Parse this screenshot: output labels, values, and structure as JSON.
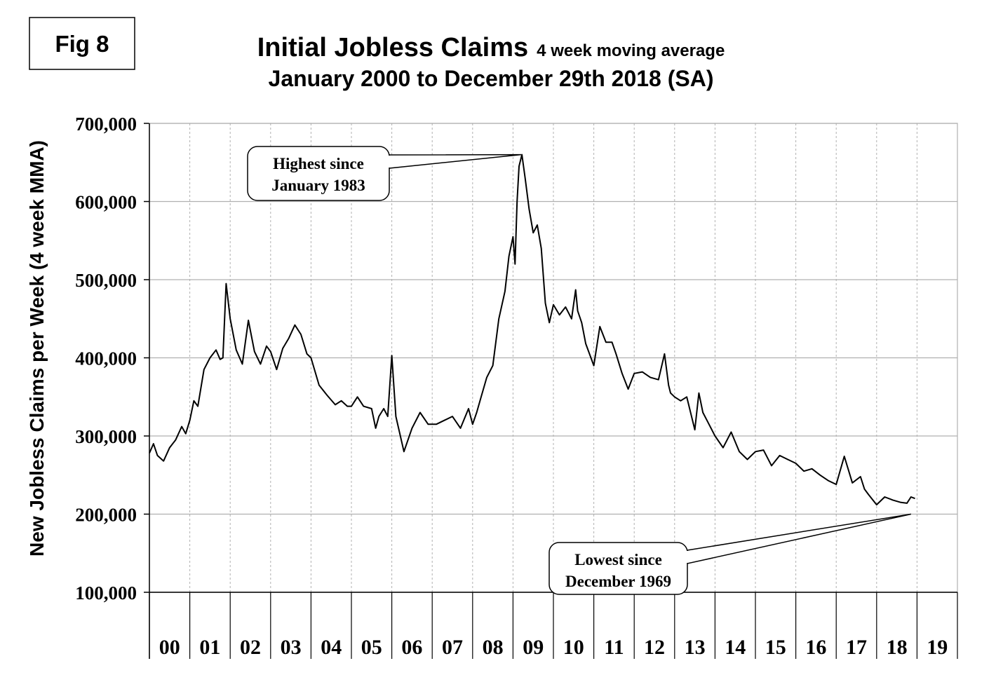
{
  "figure_label": "Fig 8",
  "title_main": "Initial Jobless Claims",
  "title_suffix": "4 week moving average",
  "subtitle": "January 2000 to December 29th 2018 (SA)",
  "colors": {
    "line": "#000000",
    "grid": "#b0b0b0",
    "axis": "#000000",
    "background": "#ffffff"
  },
  "chart_data": {
    "type": "line",
    "title": "Initial Jobless Claims",
    "subtitle": "January 2000 to December 29th 2018 (SA)",
    "xlabel": "",
    "ylabel": "New Jobless Claims per Week (4 week MMA)",
    "ylim": [
      100000,
      700000
    ],
    "xlim": [
      2000,
      2020
    ],
    "yticks": [
      100000,
      200000,
      300000,
      400000,
      500000,
      600000,
      700000
    ],
    "ytick_labels": [
      "100,000",
      "200,000",
      "300,000",
      "400,000",
      "500,000",
      "600,000",
      "700,000"
    ],
    "xtick_labels": [
      "00",
      "01",
      "02",
      "03",
      "04",
      "05",
      "06",
      "07",
      "08",
      "09",
      "10",
      "11",
      "12",
      "13",
      "14",
      "15",
      "16",
      "17",
      "18",
      "19"
    ],
    "grid": true,
    "legend": "none",
    "series": [
      {
        "x": [
          2000.0,
          2000.1,
          2000.2,
          2000.35,
          2000.5,
          2000.65,
          2000.8,
          2000.9,
          2001.0,
          2001.1,
          2001.2,
          2001.35,
          2001.5,
          2001.65,
          2001.75,
          2001.82,
          2001.9,
          2002.0,
          2002.15,
          2002.3,
          2002.45,
          2002.6,
          2002.75,
          2002.9,
          2003.0,
          2003.15,
          2003.3,
          2003.45,
          2003.6,
          2003.75,
          2003.9,
          2004.0,
          2004.2,
          2004.4,
          2004.6,
          2004.75,
          2004.9,
          2005.0,
          2005.15,
          2005.3,
          2005.5,
          2005.6,
          2005.68,
          2005.8,
          2005.9,
          2006.0,
          2006.1,
          2006.3,
          2006.5,
          2006.7,
          2006.9,
          2007.1,
          2007.3,
          2007.5,
          2007.7,
          2007.9,
          2008.0,
          2008.1,
          2008.2,
          2008.35,
          2008.5,
          2008.65,
          2008.8,
          2008.9,
          2009.0,
          2009.05,
          2009.1,
          2009.15,
          2009.22,
          2009.3,
          2009.4,
          2009.5,
          2009.6,
          2009.7,
          2009.8,
          2009.9,
          2010.0,
          2010.15,
          2010.3,
          2010.45,
          2010.55,
          2010.6,
          2010.7,
          2010.8,
          2011.0,
          2011.15,
          2011.3,
          2011.45,
          2011.55,
          2011.7,
          2011.85,
          2012.0,
          2012.2,
          2012.4,
          2012.6,
          2012.75,
          2012.85,
          2012.9,
          2013.0,
          2013.15,
          2013.3,
          2013.5,
          2013.6,
          2013.7,
          2013.8,
          2014.0,
          2014.2,
          2014.4,
          2014.6,
          2014.8,
          2015.0,
          2015.2,
          2015.4,
          2015.6,
          2015.8,
          2016.0,
          2016.2,
          2016.4,
          2016.6,
          2016.8,
          2017.0,
          2017.2,
          2017.4,
          2017.6,
          2017.7,
          2017.8,
          2018.0,
          2018.2,
          2018.4,
          2018.6,
          2018.75,
          2018.85,
          2018.95
        ],
        "y": [
          278000,
          290000,
          275000,
          268000,
          285000,
          295000,
          312000,
          303000,
          320000,
          345000,
          338000,
          385000,
          400000,
          410000,
          398000,
          400000,
          495000,
          450000,
          410000,
          392000,
          448000,
          408000,
          392000,
          415000,
          408000,
          385000,
          412000,
          425000,
          442000,
          430000,
          405000,
          400000,
          365000,
          352000,
          340000,
          345000,
          338000,
          338000,
          350000,
          338000,
          335000,
          310000,
          325000,
          335000,
          325000,
          403000,
          325000,
          280000,
          310000,
          330000,
          315000,
          315000,
          320000,
          325000,
          310000,
          335000,
          315000,
          330000,
          348000,
          375000,
          390000,
          450000,
          485000,
          530000,
          555000,
          520000,
          600000,
          645000,
          660000,
          630000,
          590000,
          560000,
          570000,
          540000,
          470000,
          445000,
          468000,
          455000,
          465000,
          450000,
          487000,
          460000,
          445000,
          418000,
          390000,
          440000,
          420000,
          420000,
          405000,
          380000,
          360000,
          380000,
          382000,
          375000,
          372000,
          405000,
          365000,
          355000,
          350000,
          345000,
          350000,
          308000,
          355000,
          330000,
          320000,
          300000,
          285000,
          305000,
          280000,
          270000,
          280000,
          282000,
          262000,
          275000,
          270000,
          265000,
          255000,
          258000,
          250000,
          243000,
          238000,
          274000,
          240000,
          248000,
          232000,
          225000,
          212000,
          222000,
          218000,
          215000,
          214000,
          222000,
          220000
        ]
      }
    ],
    "annotations": [
      {
        "text_lines": [
          "Highest since",
          "January 1983"
        ],
        "target_x": 2009.2,
        "target_y": 660000
      },
      {
        "text_lines": [
          "Lowest since",
          "December 1969"
        ],
        "target_x": 2018.85,
        "target_y": 200000
      }
    ]
  }
}
